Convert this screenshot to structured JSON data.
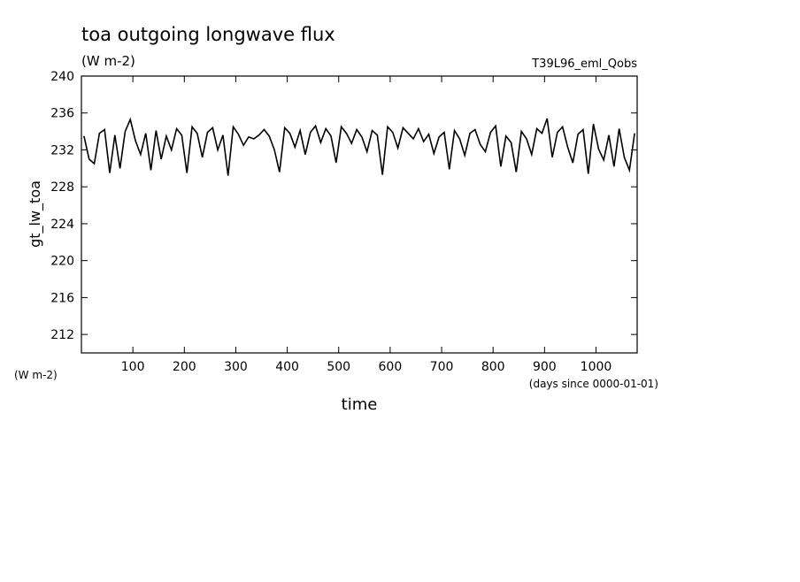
{
  "chart_data": {
    "type": "line",
    "title": "toa outgoing longwave flux",
    "subtitle": "(W m-2)",
    "run_label": "T39L96_eml_Qobs",
    "y_label": "gt_lw_toa",
    "y_unit": "(W m-2)",
    "x_unit": "(days since 0000-01-01)",
    "x_label": "time",
    "color": "#000000",
    "xlim": [
      0,
      1080
    ],
    "ylim": [
      210,
      240
    ],
    "xticks": [
      100,
      200,
      300,
      400,
      500,
      600,
      700,
      800,
      900,
      1000
    ],
    "yticks": [
      212,
      216,
      220,
      224,
      228,
      232,
      236,
      240
    ],
    "x": [
      5,
      15,
      25,
      35,
      45,
      55,
      65,
      75,
      85,
      95,
      105,
      115,
      125,
      135,
      145,
      155,
      165,
      175,
      185,
      195,
      205,
      215,
      225,
      235,
      245,
      255,
      265,
      275,
      285,
      295,
      305,
      315,
      325,
      335,
      345,
      355,
      365,
      375,
      385,
      395,
      405,
      415,
      425,
      435,
      445,
      455,
      465,
      475,
      485,
      495,
      505,
      515,
      525,
      535,
      545,
      555,
      565,
      575,
      585,
      595,
      605,
      615,
      625,
      635,
      645,
      655,
      665,
      675,
      685,
      695,
      705,
      715,
      725,
      735,
      745,
      755,
      765,
      775,
      785,
      795,
      805,
      815,
      825,
      835,
      845,
      855,
      865,
      875,
      885,
      895,
      905,
      915,
      925,
      935,
      945,
      955,
      965,
      975,
      985,
      995,
      1005,
      1015,
      1025,
      1035,
      1045,
      1055,
      1065,
      1075
    ],
    "values": [
      233.5,
      231,
      230.5,
      233.8,
      234.2,
      229.5,
      233.6,
      230,
      234,
      235.3,
      233,
      231.5,
      233.8,
      229.8,
      234.1,
      231,
      233.5,
      232,
      234.3,
      233.6,
      229.5,
      234.5,
      233.8,
      231.2,
      233.9,
      234.4,
      232,
      233.6,
      229.2,
      234.5,
      233.7,
      232.5,
      233.4,
      233.2,
      233.6,
      234.2,
      233.5,
      232,
      229.6,
      234.4,
      233.8,
      232.3,
      234.1,
      231.5,
      233.9,
      234.6,
      232.8,
      234.3,
      233.5,
      230.6,
      234.5,
      233.8,
      232.7,
      234.2,
      233.4,
      231.8,
      234.1,
      233.6,
      229.3,
      234.5,
      233.9,
      232.2,
      234.4,
      233.8,
      233.2,
      234.3,
      232.9,
      233.7,
      231.6,
      233.4,
      233.9,
      229.9,
      234.1,
      233.2,
      231.4,
      233.8,
      234.2,
      232.6,
      231.8,
      233.9,
      234.6,
      230.2,
      233.5,
      232.8,
      229.6,
      234,
      233.2,
      231.5,
      234.3,
      233.8,
      235.4,
      231.2,
      233.9,
      234.5,
      232.3,
      230.6,
      233.7,
      234.2,
      229.4,
      234.8,
      232.1,
      230.9,
      233.6,
      230.2,
      234.3,
      231.2,
      229.8,
      233.8
    ]
  }
}
